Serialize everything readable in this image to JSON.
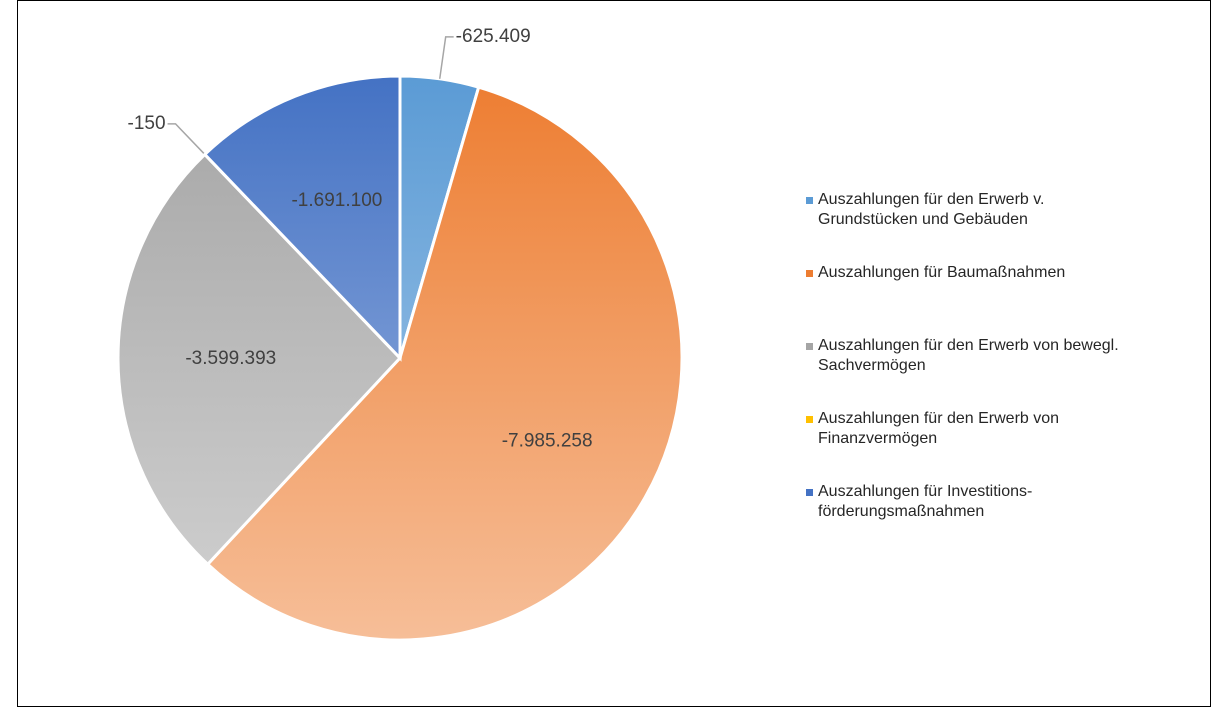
{
  "chart_data": {
    "type": "pie",
    "categories": [
      "Auszahlungen für den Erwerb v. Grundstücken und Gebäuden",
      "Auszahlungen für Baumaßnahmen",
      "Auszahlungen für den Erwerb von bewegl. Sachvermögen",
      "Auszahlungen für den Erwerb von Finanzvermögen",
      "Auszahlungen für Investitions-förderungsmaßnahmen"
    ],
    "values": [
      -625409,
      -7985258,
      -3599393,
      -150,
      -1691100
    ],
    "value_labels": [
      "-625.409",
      "-7.985.258",
      "-3.599.393",
      "-150",
      "-1.691.100"
    ],
    "colors": [
      "#5b9bd5",
      "#ed7d31",
      "#a5a5a5",
      "#ffc000",
      "#4472c4"
    ],
    "legend": "right"
  }
}
